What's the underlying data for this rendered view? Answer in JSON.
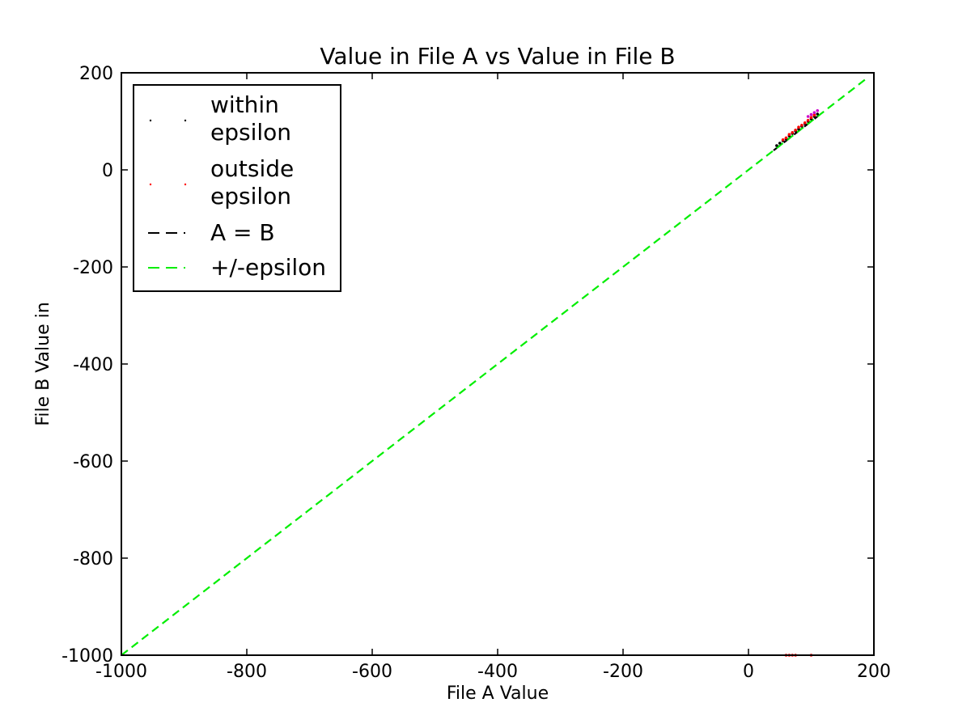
{
  "chart_data": {
    "type": "scatter",
    "title": "Value in File A vs Value in File B",
    "xlabel": "File A Value",
    "ylabel": "File B Value in",
    "xlim": [
      -1000,
      200
    ],
    "ylim": [
      -1000,
      200
    ],
    "xticks": [
      -1000,
      -800,
      -600,
      -400,
      -200,
      0,
      200
    ],
    "yticks": [
      -1000,
      -800,
      -600,
      -400,
      -200,
      0,
      200
    ],
    "xtick_labels": [
      "-1000",
      "-800",
      "-600",
      "-400",
      "-200",
      "0",
      "200"
    ],
    "ytick_labels": [
      "-1000",
      "-800",
      "-600",
      "-400",
      "-200",
      "0",
      "200"
    ],
    "grid": false,
    "legend_placement": "top-left",
    "legend": {
      "within": [
        "within",
        "epsilon"
      ],
      "outside": [
        "outside",
        "epsilon"
      ],
      "identity": "A = B",
      "epsilon": "+/-epsilon"
    },
    "series": [
      {
        "key": "within",
        "style": "points",
        "color": "#000000",
        "x": [
          45,
          50,
          55,
          60,
          65,
          70,
          75,
          80,
          85,
          90,
          95,
          100,
          105,
          110
        ],
        "y": [
          50,
          55,
          60,
          64,
          70,
          75,
          80,
          84,
          90,
          95,
          100,
          105,
          110,
          115
        ]
      },
      {
        "key": "outside",
        "style": "points",
        "color": "#ff0000",
        "x": [
          55,
          60,
          65,
          70,
          75,
          80,
          85,
          90,
          95,
          100,
          105,
          60,
          65,
          70,
          75,
          100
        ],
        "y": [
          62,
          66,
          73,
          77,
          82,
          88,
          92,
          97,
          102,
          108,
          113,
          -1000,
          -1000,
          -1000,
          -1000,
          -1000
        ]
      },
      {
        "key": "magenta",
        "style": "points",
        "color": "#cc00cc",
        "x": [
          95,
          100,
          105,
          110
        ],
        "y": [
          110,
          114,
          118,
          122
        ]
      },
      {
        "key": "identity",
        "style": "dashed-line",
        "color": "#000000",
        "x": [
          40,
          110
        ],
        "y": [
          40,
          110
        ]
      },
      {
        "key": "epsilon",
        "style": "dashed-line",
        "color": "#00ee00",
        "x": [
          -1000,
          190
        ],
        "y": [
          -1000,
          190
        ]
      }
    ]
  }
}
